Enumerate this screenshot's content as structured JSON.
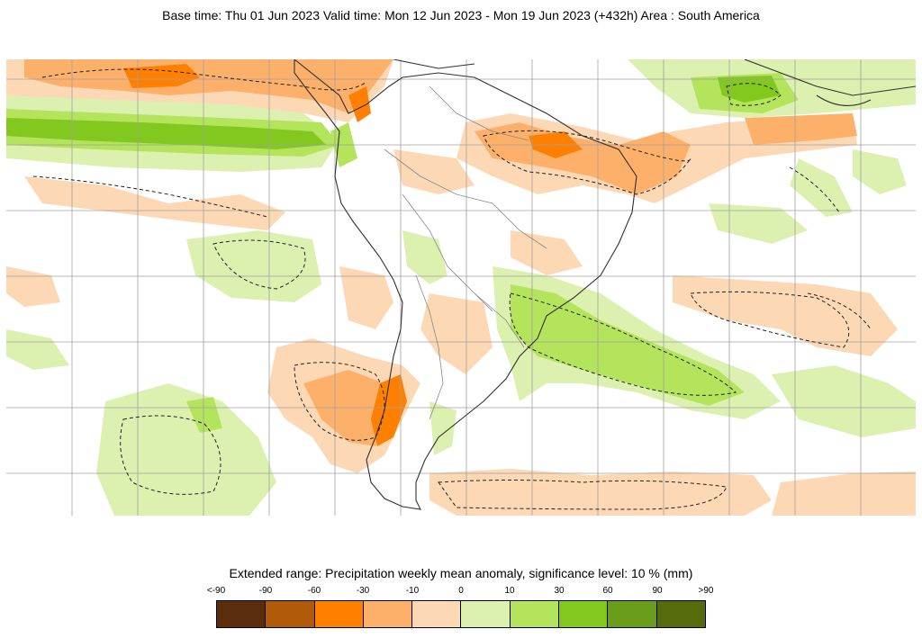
{
  "header": {
    "title": "Base time: Thu 01 Jun 2023 Valid time: Mon 12 Jun 2023 - Mon 19 Jun 2023 (+432h) Area : South America"
  },
  "map": {
    "region": "South America",
    "variable": "Precipitation weekly mean anomaly",
    "significance_contour": "dashed"
  },
  "colorbar": {
    "title": "Extended range: Precipitation weekly mean anomaly, significance level: 10 % (mm)",
    "ticks": [
      "<-90",
      "-90",
      "-60",
      "-30",
      "-10",
      "0",
      "10",
      "30",
      "60",
      "90",
      ">90"
    ],
    "colors": [
      "#5a2d0c",
      "#b05a0a",
      "#ff8000",
      "#fdb06a",
      "#fdd8b4",
      "#dcf0b0",
      "#b4e45c",
      "#82c81e",
      "#6a9e1a",
      "#556b0c"
    ]
  }
}
